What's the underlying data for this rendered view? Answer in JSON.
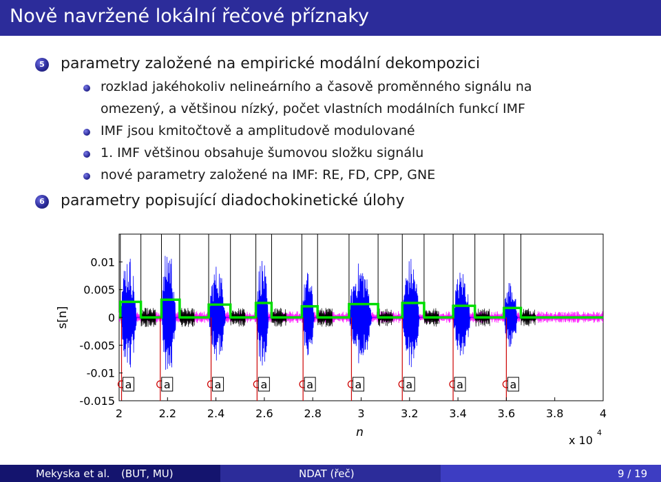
{
  "slide": {
    "title": "Nově navržené lokální řečové příznaky",
    "items": [
      {
        "number": "5",
        "text": "parametry založené na empirické modální dekompozici",
        "subitems": [
          "rozklad jakéhokoliv nelineárního a časově proměnného signálu na",
          "omezený, a většinou nízký, počet vlastních modálních funkcí IMF",
          "IMF jsou kmitočtově a amplitudově modulované",
          "1. IMF většinou obsahuje šumovou složku signálu",
          "nové parametry založené na IMF: RE, FD, CPP, GNE"
        ]
      },
      {
        "number": "6",
        "text": "parametry popisující diadochokinetické úlohy",
        "subitems": []
      }
    ]
  },
  "chart_data": {
    "type": "line",
    "xlabel": "n",
    "ylabel": "s[n]",
    "x_scale_label": "x 10",
    "x_scale_exponent": "4",
    "xlim": [
      2,
      4
    ],
    "ylim": [
      -0.015,
      0.015
    ],
    "x_ticks": [
      "2",
      "2.2",
      "2.4",
      "2.6",
      "2.8",
      "3",
      "3.2",
      "3.4",
      "3.6",
      "3.8",
      "4"
    ],
    "y_ticks": [
      "0.01",
      "0.005",
      "0",
      "-0.005",
      "-0.01",
      "-0.015"
    ],
    "y_tick_values": [
      0.01,
      0.005,
      0,
      -0.005,
      -0.01,
      -0.015
    ],
    "syllable_label": "a",
    "syllable_markers_x": [
      2.01,
      2.17,
      2.38,
      2.57,
      2.76,
      2.96,
      3.17,
      3.38,
      3.6
    ],
    "syllable_boundaries_x": [
      2.005,
      2.09,
      2.175,
      2.25,
      2.37,
      2.46,
      2.565,
      2.63,
      2.755,
      2.82,
      2.95,
      3.07,
      3.17,
      3.26,
      3.38,
      3.47,
      3.59,
      3.66
    ],
    "green_envelope_levels": [
      0.0028,
      0.0032,
      0.0023,
      0.0026,
      0.002,
      0.0024,
      0.0026,
      0.0021,
      0.0017
    ],
    "series": [
      {
        "name": "",
        "color": "#ff00ff",
        "description": "magenta"
      },
      {
        "name": "",
        "color": "#000000",
        "description": "black"
      },
      {
        "name": "",
        "color": "#0000ff",
        "description": "blue"
      },
      {
        "name": "",
        "color": "#00dd00",
        "description": "green"
      },
      {
        "name": "",
        "color": "#cc0000",
        "description": "red"
      }
    ],
    "grid": false
  },
  "footer": {
    "authors": "Mekyska et al.",
    "affiliation": "(BUT, MU)",
    "short_title": "NDAT (řeč)",
    "page": "9 / 19"
  },
  "colors": {
    "title_bar": "#2c2c9a",
    "footer_left": "#14146e",
    "footer_mid": "#2c2c9a",
    "footer_right": "#3d3dc2"
  }
}
